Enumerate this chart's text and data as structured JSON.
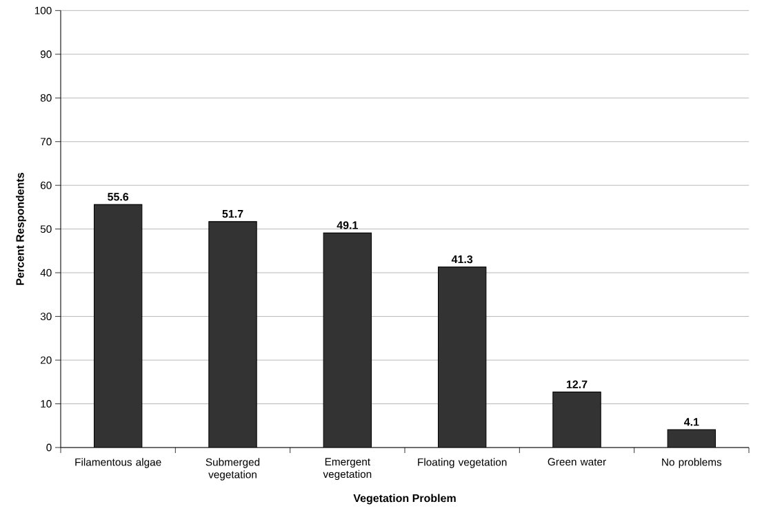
{
  "chart_data": {
    "type": "bar",
    "xlabel": "Vegetation Problem",
    "ylabel": "Percent Respondents",
    "categories": [
      "Filamentous algae",
      "Submerged vegetation",
      "Emergent vegetation",
      "Floating vegetation",
      "Green water",
      "No problems"
    ],
    "values": [
      55.6,
      51.7,
      49.1,
      41.3,
      12.7,
      4.1
    ],
    "color": "#333333",
    "ylim": [
      0,
      100
    ],
    "yticks": [
      0,
      10,
      20,
      30,
      40,
      50,
      60,
      70,
      80,
      90,
      100
    ],
    "grid": "y",
    "data_labels": true
  }
}
